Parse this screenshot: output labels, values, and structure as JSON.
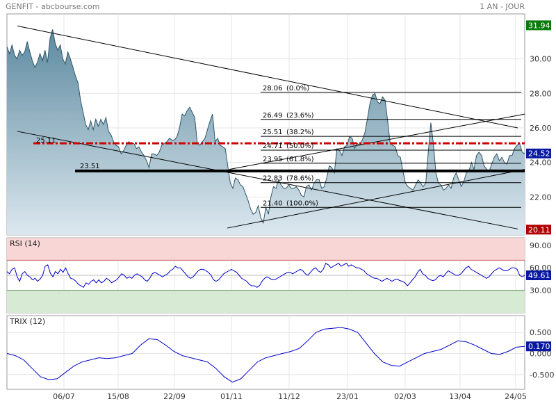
{
  "header": {
    "symbol": "GENFIT - abcbourse.com",
    "period": "1 AN - JOUR"
  },
  "colors": {
    "price_fill_top": "#5d8aa0",
    "price_fill_bottom": "#dce8ef",
    "price_line": "#2e5566",
    "grid": "#e6e6e6",
    "support_red": "#cc0000",
    "support_black": "#000000",
    "rsi_overbought": "#f9d6d6",
    "rsi_oversold": "#d7ead3",
    "rsi_line": "#0000cc",
    "trix_line": "#0000cc",
    "badge_last": "#0a1aa0",
    "badge_high": "#0a7a0a",
    "badge_low": "#b00000"
  },
  "chart_data": [
    {
      "type": "area",
      "name": "price",
      "x_tick_labels": [
        "06/07",
        "15/08",
        "22/09",
        "01/11",
        "11/12",
        "23/01",
        "02/03",
        "13/04",
        "24/05"
      ],
      "y_ticks": [
        22.0,
        24.0,
        26.0,
        28.0,
        30.0
      ],
      "y_tick_labels": [
        "22.00",
        "24.00",
        "26.00",
        "28.00",
        "30.00"
      ],
      "ylim": [
        19.8,
        32.6
      ],
      "high_label": "31.94",
      "low_label": "20.11",
      "last_label": "24.52",
      "grid": true,
      "values": [
        30.7,
        30.3,
        30.8,
        30.2,
        30.0,
        30.5,
        30.2,
        30.4,
        31.0,
        30.4,
        29.9,
        29.5,
        29.8,
        30.3,
        29.9,
        30.5,
        29.8,
        31.2,
        31.7,
        30.9,
        30.5,
        30.8,
        30.0,
        29.7,
        30.4,
        30.0,
        29.5,
        29.0,
        28.6,
        27.6,
        26.9,
        26.2,
        25.9,
        26.4,
        25.9,
        26.5,
        26.1,
        26.5,
        26.2,
        26.6,
        25.8,
        25.6,
        25.2,
        25.0,
        24.9,
        24.5,
        24.7,
        25.0,
        25.2,
        25.1,
        25.1,
        24.8,
        24.9,
        24.6,
        24.4,
        24.1,
        23.7,
        24.5,
        24.5,
        24.4,
        24.6,
        25.0,
        25.1,
        25.2,
        25.4,
        25.3,
        25.3,
        25.5,
        26.0,
        26.8,
        26.7,
        27.0,
        27.2,
        26.9,
        26.6,
        25.1,
        25.0,
        25.2,
        25.4,
        25.9,
        26.4,
        26.8,
        25.2,
        25.4,
        25.0,
        24.9,
        24.8,
        23.8,
        22.8,
        22.5,
        23.1,
        23.0,
        22.7,
        22.6,
        22.2,
        21.8,
        21.3,
        21.0,
        21.1,
        21.5,
        20.8,
        20.5,
        21.4,
        21.0,
        22.0,
        22.6,
        22.5,
        23.0,
        22.7,
        22.5,
        22.5,
        22.7,
        22.5,
        22.5,
        22.6,
        22.4,
        22.1,
        22.0,
        22.6,
        22.7,
        22.4,
        22.8,
        23.0,
        23.0,
        22.5,
        22.6,
        23.1,
        23.8,
        23.7,
        23.4,
        24.8,
        24.7,
        24.4,
        24.9,
        25.0,
        25.5,
        25.4,
        24.8,
        25.1,
        25.0,
        25.3,
        25.7,
        26.5,
        27.4,
        27.9,
        28.0,
        27.5,
        27.4,
        27.8,
        27.6,
        26.4,
        25.1,
        25.0,
        24.9,
        24.4,
        24.3,
        23.5,
        22.8,
        22.6,
        22.5,
        22.4,
        22.7,
        23.0,
        22.8,
        22.6,
        22.8,
        24.6,
        26.3,
        25.1,
        23.4,
        22.8,
        22.7,
        22.4,
        22.5,
        22.7,
        22.5,
        23.1,
        23.4,
        23.0,
        22.6,
        22.9,
        23.4,
        23.5,
        24.0,
        23.6,
        24.4,
        24.6,
        24.4,
        23.8,
        23.6,
        23.5,
        23.9,
        24.3,
        24.5,
        24.1,
        24.3,
        24.0,
        23.9,
        24.4,
        24.4,
        24.8,
        25.0,
        25.1,
        24.6,
        24.5
      ]
    },
    {
      "type": "line",
      "name": "RSI (14)",
      "y_ticks": [
        30,
        60,
        90
      ],
      "y_tick_labels": [
        "30.00",
        "60.00",
        "90.00"
      ],
      "ylim": [
        0,
        100
      ],
      "overbought": 70,
      "oversold": 30,
      "last_label": "49.61",
      "values": [
        55,
        52,
        58,
        60,
        48,
        42,
        52,
        55,
        50,
        48,
        44,
        46,
        42,
        45,
        50,
        62,
        64,
        53,
        48,
        55,
        52,
        58,
        54,
        60,
        52,
        46,
        45,
        42,
        38,
        36,
        34,
        40,
        38,
        42,
        44,
        40,
        44,
        40,
        42,
        46,
        44,
        40,
        42,
        44,
        48,
        52,
        50,
        46,
        48,
        46,
        50,
        52,
        50,
        48,
        44,
        42,
        46,
        52,
        54,
        52,
        50,
        48,
        50,
        52,
        56,
        58,
        62,
        60,
        60,
        56,
        52,
        48,
        46,
        48,
        52,
        56,
        58,
        58,
        56,
        54,
        50,
        44,
        42,
        44,
        48,
        52,
        54,
        56,
        58,
        56,
        54,
        50,
        46,
        44,
        42,
        38,
        36,
        36,
        34,
        36,
        42,
        46,
        48,
        46,
        44,
        44,
        46,
        48,
        50,
        52,
        54,
        54,
        52,
        54,
        56,
        58,
        56,
        52,
        50,
        54,
        58,
        60,
        56,
        54,
        58,
        66,
        64,
        60,
        62,
        64,
        66,
        62,
        64,
        66,
        62,
        64,
        62,
        60,
        60,
        58,
        56,
        52,
        50,
        48,
        46,
        46,
        44,
        42,
        44,
        46,
        44,
        42,
        44,
        45,
        43,
        42,
        40,
        36,
        40,
        44,
        48,
        54,
        58,
        52,
        50,
        46,
        44,
        43,
        44,
        48,
        50,
        48,
        52,
        56,
        54,
        52,
        50,
        50,
        52,
        56,
        60,
        62,
        58,
        56,
        54,
        52,
        50,
        48,
        46,
        48,
        52,
        56,
        58,
        60,
        58,
        56,
        56,
        58,
        60,
        60,
        58,
        50,
        48,
        50
      ]
    },
    {
      "type": "line",
      "name": "TRIX (12)",
      "y_ticks": [
        -0.5,
        0.0,
        0.5
      ],
      "y_tick_labels": [
        "-0.500",
        "0.000",
        "0.500"
      ],
      "ylim": [
        -0.85,
        0.9
      ],
      "last_label": "0.170",
      "values": [
        0.0,
        -0.05,
        -0.15,
        -0.35,
        -0.55,
        -0.62,
        -0.6,
        -0.45,
        -0.3,
        -0.2,
        -0.15,
        -0.1,
        -0.12,
        -0.1,
        -0.05,
        0.0,
        0.2,
        0.35,
        0.33,
        0.2,
        0.05,
        -0.05,
        -0.1,
        -0.15,
        -0.2,
        -0.35,
        -0.55,
        -0.68,
        -0.6,
        -0.4,
        -0.2,
        -0.1,
        -0.05,
        0.0,
        0.05,
        0.12,
        0.3,
        0.5,
        0.58,
        0.6,
        0.62,
        0.58,
        0.5,
        0.25,
        0.0,
        -0.2,
        -0.28,
        -0.3,
        -0.2,
        -0.1,
        0.0,
        0.05,
        0.1,
        0.2,
        0.3,
        0.28,
        0.2,
        0.1,
        0.0,
        -0.02,
        0.05,
        0.15,
        0.17
      ]
    }
  ],
  "fibonacci": [
    {
      "value": 28.06,
      "label": "28.06",
      "pct": "(0.0%)"
    },
    {
      "value": 26.49,
      "label": "26.49",
      "pct": "(23.6%)"
    },
    {
      "value": 25.51,
      "label": "25.51",
      "pct": "(38.2%)"
    },
    {
      "value": 24.71,
      "label": "24.71",
      "pct": "(50.0%)"
    },
    {
      "value": 23.95,
      "label": "23.95",
      "pct": "(61.8%)"
    },
    {
      "value": 22.83,
      "label": "22.83",
      "pct": "(78.6%)"
    },
    {
      "value": 21.4,
      "label": "21.40",
      "pct": "(100.0%)"
    }
  ],
  "support_lines": [
    {
      "value": 25.11,
      "label": "25.11",
      "style": "dashdot"
    },
    {
      "value": 23.51,
      "label": "23.51",
      "style": "thick"
    }
  ],
  "panels": {
    "rsi_label": "RSI (14)",
    "trix_label": "TRIX (12)"
  }
}
